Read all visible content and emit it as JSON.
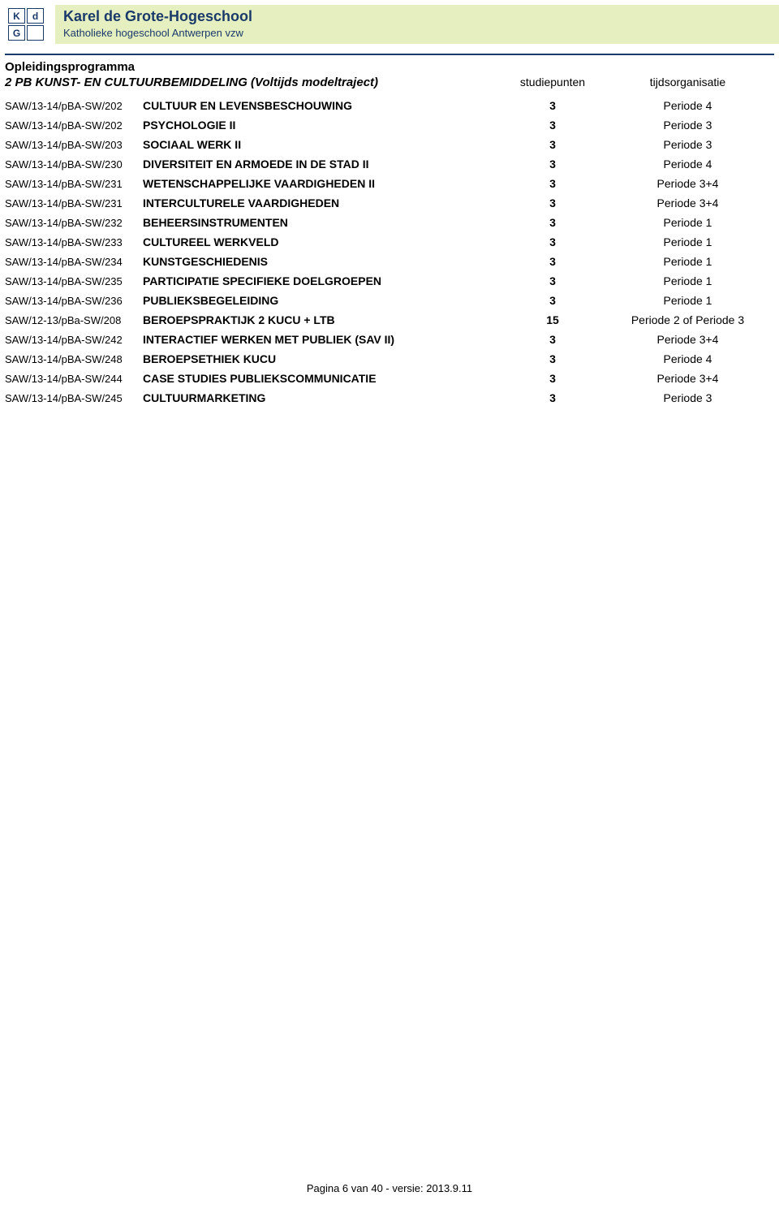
{
  "header": {
    "logo": {
      "k": "K",
      "d": "d",
      "g": "G"
    },
    "title": "Karel de Grote-Hogeschool",
    "subtitle": "Katholieke hogeschool Antwerpen vzw"
  },
  "heading1": "Opleidingsprogramma",
  "heading2": "2 PB KUNST- EN CULTUURBEMIDDELING (Voltijds modeltraject)",
  "columns": {
    "sp": "studiepunten",
    "org": "tijdsorganisatie"
  },
  "courses": [
    {
      "code": "SAW/13-14/pBA-SW/202",
      "name": "CULTUUR EN LEVENSBESCHOUWING",
      "sp": "3",
      "org": "Periode 4"
    },
    {
      "code": "SAW/13-14/pBA-SW/202",
      "name": "PSYCHOLOGIE II",
      "sp": "3",
      "org": "Periode 3"
    },
    {
      "code": "SAW/13-14/pBA-SW/203",
      "name": "SOCIAAL WERK II",
      "sp": "3",
      "org": "Periode 3"
    },
    {
      "code": "SAW/13-14/pBA-SW/230",
      "name": "DIVERSITEIT EN ARMOEDE IN DE STAD II",
      "sp": "3",
      "org": "Periode 4"
    },
    {
      "code": "SAW/13-14/pBA-SW/231",
      "name": "WETENSCHAPPELIJKE VAARDIGHEDEN II",
      "sp": "3",
      "org": "Periode 3+4"
    },
    {
      "code": "SAW/13-14/pBA-SW/231",
      "name": "INTERCULTURELE VAARDIGHEDEN",
      "sp": "3",
      "org": "Periode 3+4"
    },
    {
      "code": "SAW/13-14/pBA-SW/232",
      "name": "BEHEERSINSTRUMENTEN",
      "sp": "3",
      "org": "Periode 1"
    },
    {
      "code": "SAW/13-14/pBA-SW/233",
      "name": "CULTUREEL WERKVELD",
      "sp": "3",
      "org": "Periode 1"
    },
    {
      "code": "SAW/13-14/pBA-SW/234",
      "name": "KUNSTGESCHIEDENIS",
      "sp": "3",
      "org": "Periode 1"
    },
    {
      "code": "SAW/13-14/pBA-SW/235",
      "name": "PARTICIPATIE SPECIFIEKE DOELGROEPEN",
      "sp": "3",
      "org": "Periode 1"
    },
    {
      "code": "SAW/13-14/pBA-SW/236",
      "name": "PUBLIEKSBEGELEIDING",
      "sp": "3",
      "org": "Periode 1"
    },
    {
      "code": "SAW/12-13/pBa-SW/208",
      "name": "BEROEPSPRAKTIJK 2 KUCU + LTB",
      "sp": "15",
      "org": "Periode 2 of Periode 3"
    },
    {
      "code": "SAW/13-14/pBA-SW/242",
      "name": "INTERACTIEF WERKEN MET PUBLIEK (SAV II)",
      "sp": "3",
      "org": "Periode 3+4"
    },
    {
      "code": "SAW/13-14/pBA-SW/248",
      "name": "BEROEPSETHIEK KUCU",
      "sp": "3",
      "org": "Periode 4"
    },
    {
      "code": "SAW/13-14/pBA-SW/244",
      "name": "CASE STUDIES PUBLIEKSCOMMUNICATIE",
      "sp": "3",
      "org": "Periode 3+4"
    },
    {
      "code": "SAW/13-14/pBA-SW/245",
      "name": "CULTUURMARKETING",
      "sp": "3",
      "org": "Periode 3"
    }
  ],
  "footer": "Pagina 6 van 40   -   versie: 2013.9.11",
  "style": {
    "header_bg": "#e5efc0",
    "header_text_color": "#1a3a6a",
    "rule_color": "#1a3a6a",
    "body_font": "Arial, Helvetica, sans-serif"
  }
}
